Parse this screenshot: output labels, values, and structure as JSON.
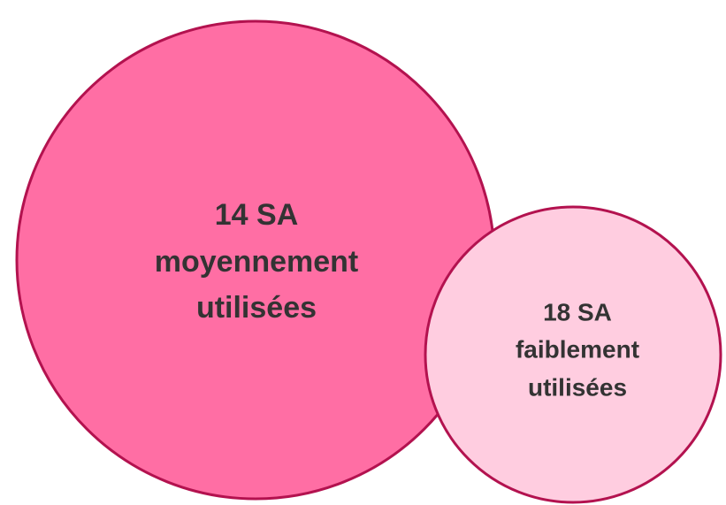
{
  "nodes": [
    {
      "lines": [
        "14 SA",
        "moyennement",
        "utilisées"
      ]
    },
    {
      "lines": [
        "18 SA",
        "faiblement",
        "utilisées"
      ]
    }
  ]
}
